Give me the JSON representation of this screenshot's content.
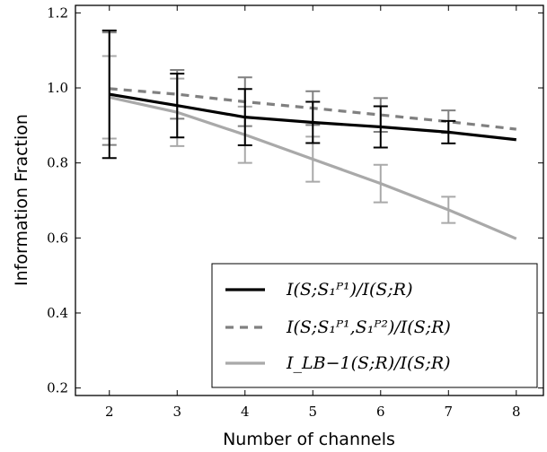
{
  "chart_data": {
    "type": "line",
    "xlabel": "Number of channels",
    "ylabel": "Information Fraction",
    "xlim": [
      1.5,
      8.4
    ],
    "ylim": [
      0.18,
      1.22
    ],
    "x": [
      2,
      3,
      4,
      5,
      6,
      7,
      8
    ],
    "x_ticks": [
      "2",
      "3",
      "4",
      "5",
      "6",
      "7",
      "8"
    ],
    "y_ticks": [
      "0.2",
      "0.4",
      "0.6",
      "0.8",
      "1.0",
      "1.2"
    ],
    "y_tick_values": [
      0.2,
      0.4,
      0.6,
      0.8,
      1.0,
      1.2
    ],
    "grid": false,
    "legend_position": "bottom-right",
    "series": [
      {
        "name": "I(S;S₁ᴾ¹)/I(S;R)",
        "color": "#000000",
        "dash": "solid",
        "values": [
          0.983,
          0.953,
          0.922,
          0.908,
          0.896,
          0.882,
          0.862
        ],
        "errors": [
          0.17,
          0.085,
          0.075,
          0.055,
          0.055,
          0.03,
          0.0
        ]
      },
      {
        "name": "I(S;S₁ᴾ¹,S₁ᴾ²)/I(S;R)",
        "color": "#808080",
        "dash": "dashed",
        "values": [
          0.998,
          0.983,
          0.963,
          0.946,
          0.928,
          0.91,
          0.89
        ],
        "errors": [
          0.15,
          0.065,
          0.065,
          0.045,
          0.045,
          0.03,
          0.0
        ]
      },
      {
        "name": "I_LB−1(S;R)/I(S;R)",
        "color": "#a9a9a9",
        "dash": "solid",
        "values": [
          0.975,
          0.935,
          0.875,
          0.81,
          0.745,
          0.675,
          0.598
        ],
        "errors": [
          0.11,
          0.09,
          0.075,
          0.06,
          0.05,
          0.035,
          0.0
        ]
      }
    ]
  }
}
